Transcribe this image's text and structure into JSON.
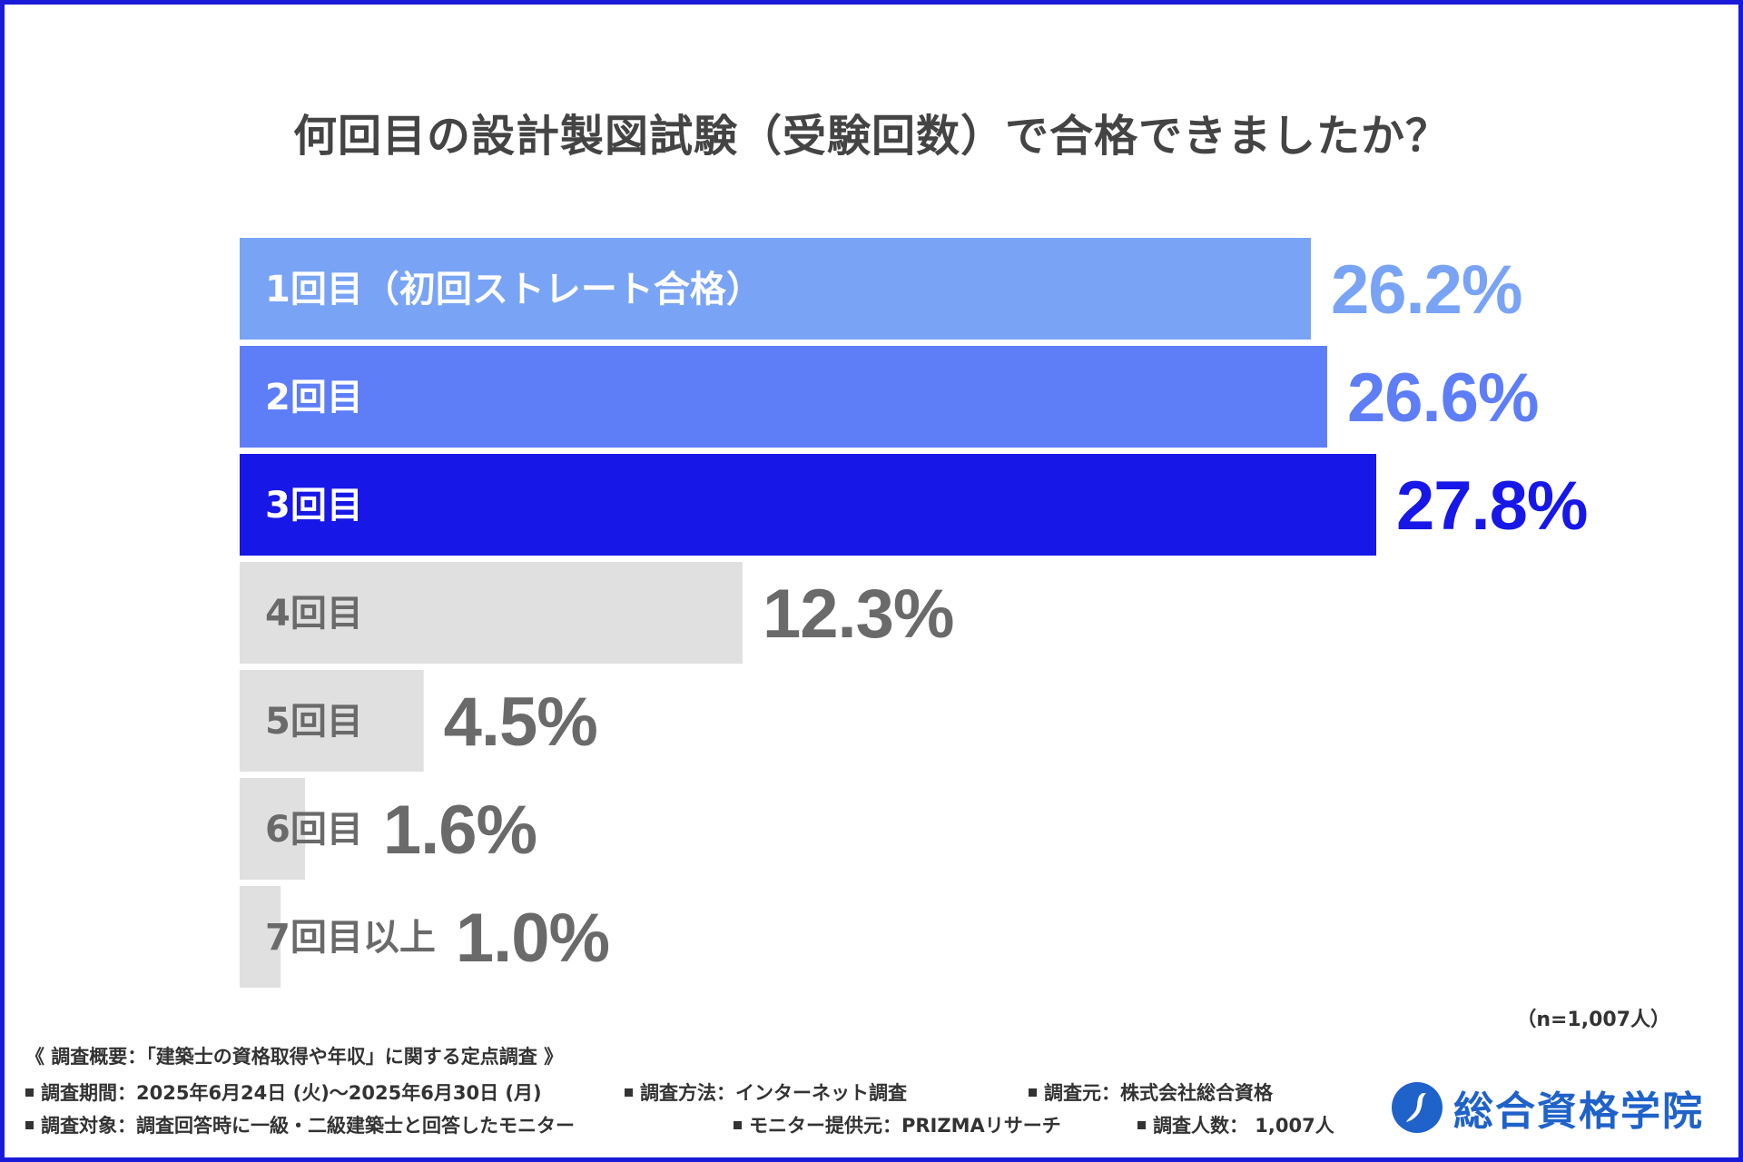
{
  "title": "何回目の設計製図試験（受験回数）で合格できましたか？",
  "chart_data": {
    "type": "bar",
    "orientation": "horizontal",
    "title": "何回目の設計製図試験（受験回数）で合格できましたか？",
    "categories": [
      "1回目（初回ストレート合格）",
      "2回目",
      "3回目",
      "4回目",
      "5回目",
      "6回目",
      "7回目以上"
    ],
    "values": [
      26.2,
      26.6,
      27.8,
      12.3,
      4.5,
      1.6,
      1.0
    ],
    "value_labels": [
      "26.2%",
      "26.6%",
      "27.8%",
      "12.3%",
      "4.5%",
      "1.6%",
      "1.0%"
    ],
    "unit": "%",
    "bar_colors": [
      "#79a3f5",
      "#5e7ef7",
      "#1717e8",
      "#e0e0e0",
      "#e0e0e0",
      "#e0e0e0",
      "#e0e0e0"
    ],
    "label_colors": [
      "#ffffff",
      "#ffffff",
      "#ffffff",
      "#6a6a6a",
      "#6a6a6a",
      "#6a6a6a",
      "#6a6a6a"
    ],
    "value_colors": [
      "#79a3f5",
      "#5e7ef7",
      "#1717e8",
      "#6a6a6a",
      "#6a6a6a",
      "#6a6a6a",
      "#6a6a6a"
    ],
    "xlim": [
      0,
      27.8
    ],
    "grid": false,
    "legend": "none"
  },
  "sample_size": "（n=1,007人）",
  "survey": {
    "title": "《 調査概要：「建築士の資格取得や年収」に関する定点調査 》",
    "period": "調査期間：2025年6月24日 (火)～2025年6月30日 (月)",
    "method": "調査方法：インターネット調査",
    "source": "調査元：株式会社総合資格",
    "target": "調査対象：調査回答時に一級・二級建築士と回答したモニター",
    "provider": "モニター提供元：PRIZMAリサーチ",
    "respondents": "調査人数： 1,007人"
  },
  "logo": {
    "text": "総合資格学院",
    "color": "#1f62c9"
  }
}
